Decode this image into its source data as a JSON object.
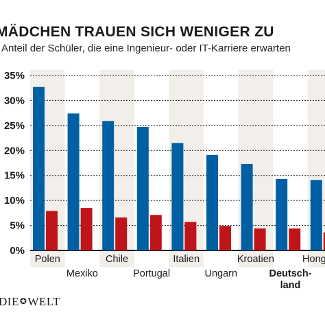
{
  "header": {
    "title": "MÄDCHEN TRAUEN SICH WENIGER ZU",
    "subtitle": "Anteil der Schüler, die eine Ingenieur- oder IT-Karriere erwarten"
  },
  "brand": {
    "logo_text_left": "DIE",
    "logo_text_right": "WELT"
  },
  "colors": {
    "boys": "#0060a3",
    "girls": "#c0141b",
    "band": "#f2efea",
    "grid": "#1a1a1a"
  },
  "chart_data": {
    "type": "bar",
    "title": "MÄDCHEN TRAUEN SICH WENIGER ZU",
    "subtitle": "Anteil der Schüler, die eine Ingenieur- oder IT-Karriere erwarten",
    "categories": [
      "Polen",
      "Mexiko",
      "Chile",
      "Portugal",
      "Italien",
      "Ungarn",
      "Kroatien",
      "Deutsch-\nland",
      "Hongkong"
    ],
    "highlight_category": "Deutsch-\nland",
    "series": [
      {
        "values": [
          32.7,
          27.4,
          25.9,
          24.7,
          21.5,
          19.1,
          17.3,
          14.3,
          14.1
        ]
      },
      {
        "values": [
          7.9,
          8.5,
          6.6,
          7.1,
          5.7,
          4.9,
          4.4,
          4.4,
          3.6
        ]
      }
    ],
    "ylim": [
      0,
      35
    ],
    "yticks": [
      "0%",
      "5%",
      "10%",
      "15%",
      "20%",
      "25%",
      "30%",
      "35%"
    ],
    "grid": true,
    "alternating_bands": true
  }
}
